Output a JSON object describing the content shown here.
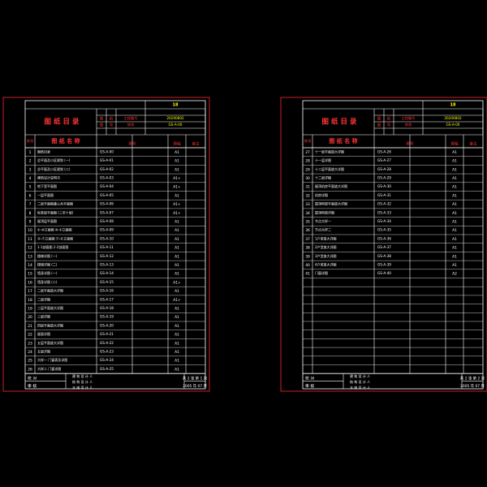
{
  "colors": {
    "background": "#000000",
    "frame": "#c8202a",
    "grid": "#ffffff",
    "text": "#ffffff",
    "heading": "#ff3333",
    "highlight": "#ffff00"
  },
  "sheets": [
    {
      "sheet_no": "18",
      "heading": "图 纸 目 录",
      "header_cells": [
        "图",
        "别",
        "工程编号",
        "图",
        "号",
        "修改"
      ],
      "project_code": "20200802",
      "drawing_code": "GS-A-00",
      "col_headers": {
        "no": "序号",
        "name": "图 纸 名 称",
        "code": "图号",
        "size": "图幅",
        "note": "备注"
      },
      "rows": [
        {
          "no": "1",
          "name": "图纸目录",
          "code": "GS-A-00",
          "size": "A1"
        },
        {
          "no": "2",
          "name": "总平面及小区规划 (一)",
          "code": "GS-A-01",
          "size": "A1"
        },
        {
          "no": "3",
          "name": "总平面及小区规划 (二)",
          "code": "GS-A-02",
          "size": "A1"
        },
        {
          "no": "4",
          "name": "建筑设计说明书",
          "code": "GS-A-03",
          "size": "A1+"
        },
        {
          "no": "5",
          "name": "地下室平面图",
          "code": "GS-A-04",
          "size": "A1+"
        },
        {
          "no": "6",
          "name": "一层平面图",
          "code": "GS-A-05",
          "size": "A1"
        },
        {
          "no": "7",
          "name": "二层平面图兼公共平面图",
          "code": "GS-A-06",
          "size": "A1+"
        },
        {
          "no": "8",
          "name": "标准层平面图 (三至十层)",
          "code": "GS-A-07",
          "size": "A1+"
        },
        {
          "no": "9",
          "name": "屋顶层平面图",
          "code": "GS-A-08",
          "size": "A1"
        },
        {
          "no": "10",
          "name": "①-⑩立面图 ⑩-①立面图",
          "code": "GS-A-09",
          "size": "A1"
        },
        {
          "no": "11",
          "name": "Ⓐ-Ⓕ立面图 Ⓕ-Ⓐ立面图",
          "code": "GS-A-10",
          "size": "A1"
        },
        {
          "no": "12",
          "name": "1-1剖面图 2-2剖面图",
          "code": "GS-A-11",
          "size": "A1"
        },
        {
          "no": "13",
          "name": "楼梯详图 (一)",
          "code": "GS-A-12",
          "size": "A1"
        },
        {
          "no": "14",
          "name": "楼梯详图 (二)",
          "code": "GS-A-13",
          "size": "A1"
        },
        {
          "no": "15",
          "name": "墙身详图 (一)",
          "code": "GS-A-14",
          "size": "A1"
        },
        {
          "no": "16",
          "name": "墙身详图 (二)",
          "code": "GS-A-15",
          "size": "A1+"
        },
        {
          "no": "17",
          "name": "二层平面放大详图",
          "code": "GS-A-16",
          "size": "A1"
        },
        {
          "no": "18",
          "name": "二层详图",
          "code": "GS-A-17",
          "size": "A1+"
        },
        {
          "no": "19",
          "name": "三层平面放大详图",
          "code": "GS-A-18",
          "size": "A1"
        },
        {
          "no": "20",
          "name": "三层详图",
          "code": "GS-A-19",
          "size": "A1"
        },
        {
          "no": "21",
          "name": "四层平面放大详图",
          "code": "GS-A-20",
          "size": "A1"
        },
        {
          "no": "22",
          "name": "屋面详图",
          "code": "GS-A-21",
          "size": "A1"
        },
        {
          "no": "23",
          "name": "五层平面放大详图",
          "code": "GS-A-22",
          "size": "A1"
        },
        {
          "no": "24",
          "name": "五层详图",
          "code": "GS-A-23",
          "size": "A1"
        },
        {
          "no": "25",
          "name": "大样一 门窗表及详图",
          "code": "GS-A-24",
          "size": "A1"
        },
        {
          "no": "26",
          "name": "大样二 门窗详图",
          "code": "GS-A-25",
          "size": "A1"
        }
      ],
      "footer": {
        "labels": [
          "校 对",
          "审 核"
        ],
        "designer_lines": [
          "建 筑 设 计 人",
          "结 构 设 计 人",
          "水 电 设 计 人"
        ],
        "page_info": "共 2 张 第 1 张",
        "date": "2005 年 07 月"
      }
    },
    {
      "sheet_no": "18",
      "heading": "图 纸 目 录",
      "header_cells": [
        "图",
        "别",
        "工程编号",
        "图",
        "号",
        "修改"
      ],
      "project_code": "20200802",
      "drawing_code": "GS-A-00",
      "col_headers": {
        "no": "序号",
        "name": "图 纸 名 称",
        "code": "图号",
        "size": "图幅",
        "note": "备注"
      },
      "rows": [
        {
          "no": "27",
          "name": "十一层平面放大详图",
          "code": "GS-A-26",
          "size": "A1"
        },
        {
          "no": "28",
          "name": "十一层详图",
          "code": "GS-A-27",
          "size": "A1"
        },
        {
          "no": "29",
          "name": "十二层平面放大详图",
          "code": "GS-A-28",
          "size": "A1"
        },
        {
          "no": "30",
          "name": "十二层详图",
          "code": "GS-A-29",
          "size": "A1"
        },
        {
          "no": "31",
          "name": "屋顶机房平面放大详图",
          "code": "GS-A-30",
          "size": "A1"
        },
        {
          "no": "32",
          "name": "机房详图",
          "code": "GS-A-31",
          "size": "A1"
        },
        {
          "no": "33",
          "name": "屋顶构架平面放大详图",
          "code": "GS-A-32",
          "size": "A1"
        },
        {
          "no": "34",
          "name": "屋顶构架详图",
          "code": "GS-A-33",
          "size": "A1"
        },
        {
          "no": "35",
          "name": "节点大样一",
          "code": "GS-A-34",
          "size": "A1"
        },
        {
          "no": "36",
          "name": "节点大样二",
          "code": "GS-A-35",
          "size": "A1"
        },
        {
          "no": "37",
          "name": "1户型放大详图",
          "code": "GS-A-36",
          "size": "A1"
        },
        {
          "no": "38",
          "name": "2户型放大详图",
          "code": "GS-A-37",
          "size": "A1"
        },
        {
          "no": "39",
          "name": "3户型放大详图",
          "code": "GS-A-38",
          "size": "A1"
        },
        {
          "no": "40",
          "name": "4户型放大详图",
          "code": "GS-A-39",
          "size": "A1"
        },
        {
          "no": "41",
          "name": "门窗详图",
          "code": "GS-A-40",
          "size": "A2"
        }
      ],
      "footer": {
        "labels": [
          "校 对",
          "审 核"
        ],
        "designer_lines": [
          "建 筑 设 计 人",
          "结 构 设 计 人",
          "水 电 设 计 人"
        ],
        "page_info": "共 2 张 第 2 张",
        "date": "2005 年 07 月"
      }
    }
  ]
}
